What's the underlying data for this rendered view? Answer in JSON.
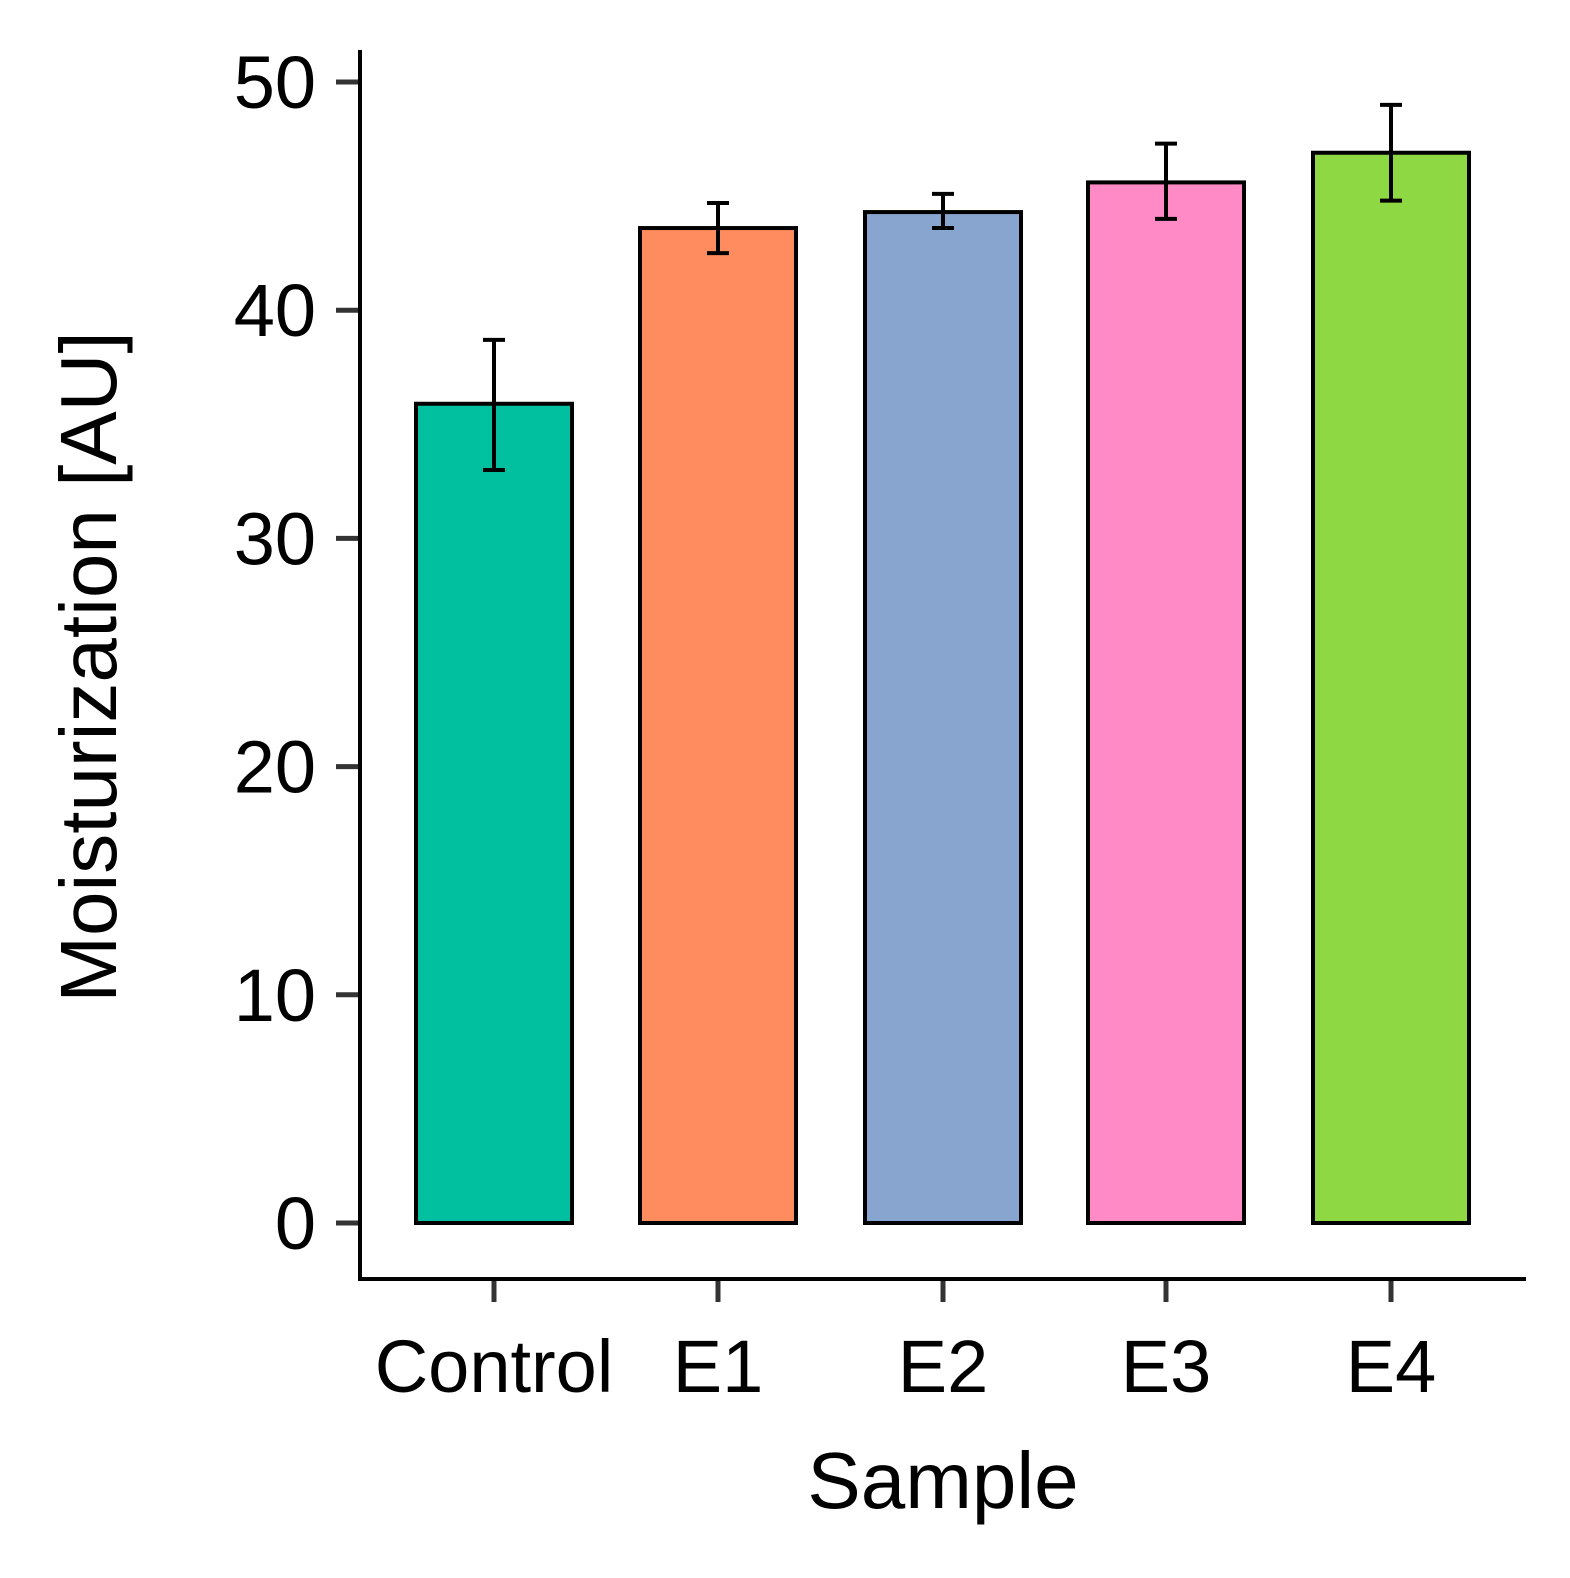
{
  "chart_data": {
    "type": "bar",
    "title": "",
    "xlabel": "Sample",
    "ylabel": "Moisturization [AU]",
    "categories": [
      "Control",
      "E1",
      "E2",
      "E3",
      "E4"
    ],
    "values": [
      35.9,
      43.6,
      44.3,
      45.6,
      46.9
    ],
    "error_lower": [
      33.0,
      42.5,
      43.6,
      44.0,
      44.8
    ],
    "error_upper": [
      38.7,
      44.7,
      45.1,
      47.3,
      49.0
    ],
    "colors": [
      "#00C0A0",
      "#FF8C5F",
      "#88A5CF",
      "#FF8AC6",
      "#8ED943"
    ],
    "ylim": [
      -2.4,
      51.5
    ],
    "yticks": [
      0,
      10,
      20,
      30,
      40,
      50
    ],
    "grid": false,
    "legend": "none"
  }
}
